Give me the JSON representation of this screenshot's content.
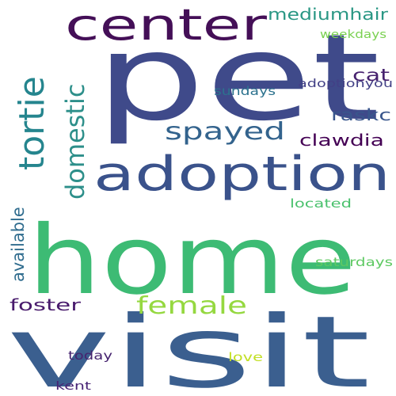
{
  "word_cloud": {
    "background": "#ffffff",
    "words": [
      {
        "text": "pet",
        "color": "#3f4a8a"
      },
      {
        "text": "home",
        "color": "#3dbb74"
      },
      {
        "text": "visit",
        "color": "#3b5f8f"
      },
      {
        "text": "adoption",
        "color": "#3a528b"
      },
      {
        "text": "center",
        "color": "#440f57"
      },
      {
        "text": "tortie",
        "color": "#25858e"
      },
      {
        "text": "spayed",
        "color": "#33638d"
      },
      {
        "text": "domestic",
        "color": "#2d8f8a"
      },
      {
        "text": "female",
        "color": "#95d840"
      },
      {
        "text": "mediumhair",
        "color": "#2a9784"
      },
      {
        "text": "cat",
        "color": "#46216e"
      },
      {
        "text": "raskc",
        "color": "#39568c"
      },
      {
        "text": "clawdia",
        "color": "#440154"
      },
      {
        "text": "available",
        "color": "#2f6c8e"
      },
      {
        "text": "foster",
        "color": "#481a6c"
      },
      {
        "text": "weekdays",
        "color": "#7ad151"
      },
      {
        "text": "sundays",
        "color": "#2c728e"
      },
      {
        "text": "adoptionyou",
        "color": "#424086"
      },
      {
        "text": "located",
        "color": "#4ac16d"
      },
      {
        "text": "saturdays",
        "color": "#5ec962"
      },
      {
        "text": "today",
        "color": "#46246f"
      },
      {
        "text": "love",
        "color": "#c2df23"
      },
      {
        "text": "kent",
        "color": "#482475"
      }
    ]
  }
}
